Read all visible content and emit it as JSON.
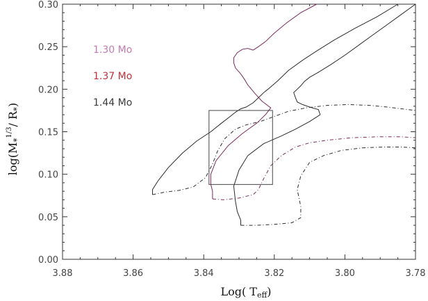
{
  "chart_data": {
    "type": "line",
    "title": "",
    "xlabel_main": "Log( T",
    "xlabel_sub": "eff",
    "xlabel_tail": ")",
    "ylabel_main": "log(M",
    "ylabel_sub1": "*",
    "ylabel_sup": "1/3",
    "ylabel_mid": "/ R",
    "ylabel_sub2": "*",
    "ylabel_tail": ")",
    "xlim": [
      3.88,
      3.78
    ],
    "ylim": [
      0.0,
      0.3
    ],
    "x_ticks": [
      "3.88",
      "3.86",
      "3.84",
      "3.82",
      "3.80",
      "3.78"
    ],
    "y_ticks": [
      "0.00",
      "0.05",
      "0.10",
      "0.15",
      "0.20",
      "0.25",
      "0.30"
    ],
    "grid": false,
    "legend_position": "top-left",
    "series": [
      {
        "name": "1.30 Mo",
        "color": "#2a2a2a",
        "text_color": "#c47ab0",
        "solid": [
          [
            3.785,
            0.3
          ],
          [
            3.791,
            0.285
          ],
          [
            3.797,
            0.272
          ],
          [
            3.803,
            0.258
          ],
          [
            3.808,
            0.245
          ],
          [
            3.812,
            0.234
          ],
          [
            3.816,
            0.222
          ],
          [
            3.819,
            0.21
          ],
          [
            3.8215,
            0.201
          ],
          [
            3.823,
            0.196
          ],
          [
            3.8245,
            0.19
          ],
          [
            3.826,
            0.184
          ],
          [
            3.828,
            0.179
          ],
          [
            3.8295,
            0.177
          ],
          [
            3.831,
            0.173
          ],
          [
            3.8325,
            0.168
          ],
          [
            3.835,
            0.16
          ],
          [
            3.838,
            0.15
          ],
          [
            3.842,
            0.139
          ],
          [
            3.846,
            0.125
          ],
          [
            3.85,
            0.108
          ],
          [
            3.853,
            0.092
          ],
          [
            3.8545,
            0.082
          ],
          [
            3.8545,
            0.076
          ]
        ],
        "dashed": [
          [
            3.8545,
            0.076
          ],
          [
            3.851,
            0.079
          ],
          [
            3.847,
            0.081
          ],
          [
            3.843,
            0.085
          ],
          [
            3.8395,
            0.096
          ],
          [
            3.8375,
            0.112
          ],
          [
            3.836,
            0.128
          ],
          [
            3.834,
            0.142
          ],
          [
            3.831,
            0.153
          ],
          [
            3.828,
            0.158
          ],
          [
            3.824,
            0.162
          ],
          [
            3.82,
            0.168
          ],
          [
            3.816,
            0.174
          ],
          [
            3.811,
            0.178
          ],
          [
            3.805,
            0.181
          ],
          [
            3.799,
            0.182
          ],
          [
            3.793,
            0.181
          ],
          [
            3.788,
            0.179
          ],
          [
            3.784,
            0.177
          ],
          [
            3.78,
            0.175
          ]
        ]
      },
      {
        "name": "1.37 Mo",
        "color": "#7a2a5a",
        "text_color": "#c0303a",
        "solid": [
          [
            3.808,
            0.3
          ],
          [
            3.8125,
            0.29
          ],
          [
            3.8165,
            0.278
          ],
          [
            3.82,
            0.266
          ],
          [
            3.8225,
            0.256
          ],
          [
            3.8245,
            0.25
          ],
          [
            3.826,
            0.246
          ],
          [
            3.8275,
            0.248
          ],
          [
            3.829,
            0.247
          ],
          [
            3.8305,
            0.243
          ],
          [
            3.8315,
            0.237
          ],
          [
            3.8315,
            0.231
          ],
          [
            3.831,
            0.225
          ],
          [
            3.8295,
            0.218
          ],
          [
            3.8285,
            0.212
          ],
          [
            3.8275,
            0.205
          ],
          [
            3.8255,
            0.195
          ],
          [
            3.8235,
            0.186
          ],
          [
            3.821,
            0.178
          ],
          [
            3.8225,
            0.17
          ],
          [
            3.825,
            0.16
          ],
          [
            3.829,
            0.148
          ],
          [
            3.833,
            0.134
          ],
          [
            3.8365,
            0.116
          ],
          [
            3.838,
            0.1
          ],
          [
            3.838,
            0.088
          ],
          [
            3.8375,
            0.08
          ],
          [
            3.8375,
            0.071
          ]
        ],
        "dashed": [
          [
            3.8375,
            0.071
          ],
          [
            3.8345,
            0.07
          ],
          [
            3.83,
            0.072
          ],
          [
            3.826,
            0.076
          ],
          [
            3.8245,
            0.082
          ],
          [
            3.823,
            0.095
          ],
          [
            3.821,
            0.11
          ],
          [
            3.818,
            0.122
          ],
          [
            3.814,
            0.132
          ],
          [
            3.81,
            0.137
          ],
          [
            3.805,
            0.14
          ],
          [
            3.798,
            0.143
          ],
          [
            3.791,
            0.144
          ],
          [
            3.784,
            0.144
          ],
          [
            3.78,
            0.143
          ]
        ]
      },
      {
        "name": "1.44 Mo",
        "color": "#2a2a2a",
        "text_color": "#3a3a3a",
        "solid": [
          [
            3.78,
            0.3
          ],
          [
            3.784,
            0.288
          ],
          [
            3.788,
            0.276
          ],
          [
            3.792,
            0.264
          ],
          [
            3.796,
            0.252
          ],
          [
            3.8,
            0.24
          ],
          [
            3.804,
            0.229
          ],
          [
            3.8075,
            0.22
          ],
          [
            3.81,
            0.214
          ],
          [
            3.8115,
            0.209
          ],
          [
            3.8125,
            0.204
          ],
          [
            3.8135,
            0.2
          ],
          [
            3.8145,
            0.196
          ],
          [
            3.814,
            0.19
          ],
          [
            3.8135,
            0.185
          ],
          [
            3.812,
            0.182
          ],
          [
            3.81,
            0.179
          ],
          [
            3.8075,
            0.176
          ],
          [
            3.807,
            0.17
          ],
          [
            3.81,
            0.162
          ],
          [
            3.814,
            0.153
          ],
          [
            3.818,
            0.145
          ],
          [
            3.823,
            0.136
          ],
          [
            3.8275,
            0.122
          ],
          [
            3.83,
            0.105
          ],
          [
            3.8315,
            0.086
          ],
          [
            3.831,
            0.068
          ],
          [
            3.8305,
            0.056
          ],
          [
            3.8295,
            0.046
          ],
          [
            3.8295,
            0.04
          ]
        ],
        "dashed": [
          [
            3.8295,
            0.04
          ],
          [
            3.825,
            0.04
          ],
          [
            3.82,
            0.041
          ],
          [
            3.815,
            0.043
          ],
          [
            3.8125,
            0.049
          ],
          [
            3.8125,
            0.062
          ],
          [
            3.8135,
            0.082
          ],
          [
            3.8125,
            0.098
          ],
          [
            3.81,
            0.114
          ],
          [
            3.806,
            0.122
          ],
          [
            3.801,
            0.128
          ],
          [
            3.795,
            0.131
          ],
          [
            3.789,
            0.132
          ],
          [
            3.784,
            0.132
          ],
          [
            3.78,
            0.131
          ]
        ]
      }
    ],
    "annotation_box": {
      "x0": 3.8385,
      "x1": 3.8205,
      "y0": 0.088,
      "y1": 0.175
    }
  }
}
